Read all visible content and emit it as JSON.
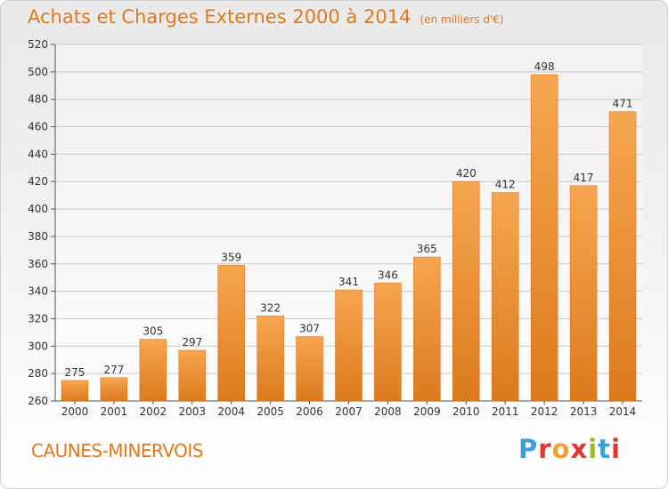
{
  "title": "Achats et Charges Externes 2000 à 2014",
  "unit_label": "(en milliers d'€)",
  "location": "CAUNES-MINERVOIS",
  "brand": {
    "text": "Proxiti",
    "letter_colors": [
      "#3aa0dc",
      "#e7342e",
      "#f2a12a",
      "#e7342e",
      "#93c11f",
      "#3aa0dc",
      "#e7342e"
    ]
  },
  "colors": {
    "title": "#e27919",
    "bar_light": "#f7a650",
    "bar_dark": "#dc7a1c",
    "grid": "#c9c9c9"
  },
  "chart_data": {
    "type": "bar",
    "categories": [
      "2000",
      "2001",
      "2002",
      "2003",
      "2004",
      "2005",
      "2006",
      "2007",
      "2008",
      "2009",
      "2010",
      "2011",
      "2012",
      "2013",
      "2014"
    ],
    "values": [
      275,
      277,
      305,
      297,
      359,
      322,
      307,
      341,
      346,
      365,
      420,
      412,
      498,
      417,
      471
    ],
    "ylim": [
      260,
      520
    ],
    "yticks": [
      260,
      280,
      300,
      320,
      340,
      360,
      380,
      400,
      420,
      440,
      460,
      480,
      500,
      520
    ],
    "grid": true,
    "xlabel": "",
    "ylabel": ""
  }
}
